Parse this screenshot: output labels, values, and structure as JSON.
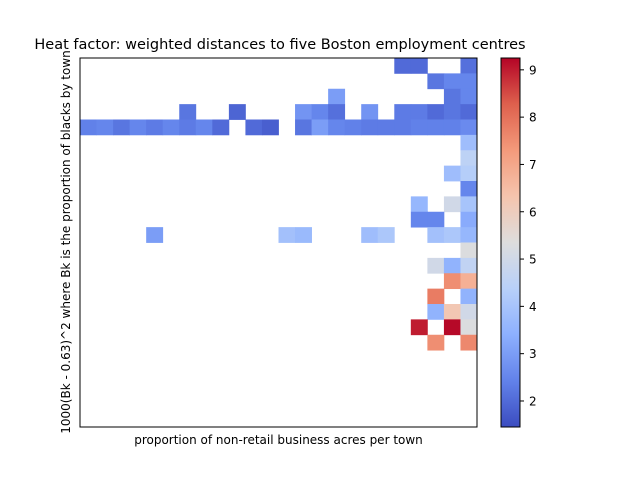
{
  "chart_data": {
    "type": "heatmap",
    "title": "Heat factor: weighted distances to five Boston employment centres",
    "xlabel": "proportion of non-retail business acres per town",
    "ylabel": "1000(Bk - 0.63)^2 where Bk is the proportion of blacks by town",
    "colormap": "coolwarm",
    "value_range": [
      1.45,
      9.25
    ],
    "colorbar_ticks": [
      2,
      3,
      4,
      5,
      6,
      7,
      8,
      9
    ],
    "n_cols": 24,
    "n_rows": 24,
    "grid": false,
    "cells": [
      [
        19,
        0,
        2.0
      ],
      [
        20,
        0,
        2.0
      ],
      [
        23,
        0,
        2.1
      ],
      [
        21,
        1,
        2.2
      ],
      [
        22,
        1,
        2.5
      ],
      [
        23,
        1,
        2.5
      ],
      [
        15,
        2,
        3.0
      ],
      [
        22,
        2,
        2.2
      ],
      [
        23,
        2,
        2.5
      ],
      [
        6,
        3,
        2.2
      ],
      [
        9,
        3,
        1.9
      ],
      [
        13,
        3,
        2.8
      ],
      [
        14,
        3,
        2.5
      ],
      [
        15,
        3,
        2.1
      ],
      [
        17,
        3,
        2.8
      ],
      [
        19,
        3,
        2.3
      ],
      [
        20,
        3,
        2.3
      ],
      [
        21,
        3,
        2.0
      ],
      [
        22,
        3,
        2.2
      ],
      [
        23,
        3,
        2.0
      ],
      [
        0,
        4,
        2.4
      ],
      [
        1,
        4,
        2.5
      ],
      [
        2,
        4,
        2.2
      ],
      [
        3,
        4,
        2.5
      ],
      [
        4,
        4,
        2.3
      ],
      [
        5,
        4,
        2.5
      ],
      [
        6,
        4,
        2.3
      ],
      [
        7,
        4,
        2.5
      ],
      [
        8,
        4,
        2.0
      ],
      [
        10,
        4,
        2.0
      ],
      [
        11,
        4,
        1.8
      ],
      [
        13,
        4,
        2.2
      ],
      [
        14,
        4,
        3.0
      ],
      [
        15,
        4,
        2.5
      ],
      [
        16,
        4,
        2.4
      ],
      [
        17,
        4,
        2.3
      ],
      [
        18,
        4,
        2.3
      ],
      [
        19,
        4,
        2.3
      ],
      [
        20,
        4,
        2.4
      ],
      [
        21,
        4,
        2.4
      ],
      [
        22,
        4,
        2.4
      ],
      [
        23,
        4,
        2.6
      ],
      [
        23,
        5,
        3.8
      ],
      [
        23,
        6,
        4.5
      ],
      [
        22,
        7,
        3.8
      ],
      [
        23,
        7,
        4.3
      ],
      [
        23,
        8,
        2.5
      ],
      [
        20,
        9,
        3.6
      ],
      [
        22,
        9,
        5.0
      ],
      [
        23,
        9,
        4.0
      ],
      [
        20,
        10,
        2.5
      ],
      [
        21,
        10,
        2.5
      ],
      [
        23,
        10,
        3.3
      ],
      [
        4,
        11,
        3.0
      ],
      [
        12,
        11,
        3.9
      ],
      [
        13,
        11,
        3.7
      ],
      [
        17,
        11,
        3.8
      ],
      [
        18,
        11,
        4.1
      ],
      [
        21,
        11,
        3.9
      ],
      [
        22,
        11,
        4.1
      ],
      [
        23,
        11,
        3.6
      ],
      [
        23,
        12,
        5.3
      ],
      [
        21,
        13,
        5.0
      ],
      [
        22,
        13,
        3.5
      ],
      [
        23,
        13,
        4.6
      ],
      [
        22,
        14,
        7.5
      ],
      [
        23,
        14,
        6.8
      ],
      [
        21,
        15,
        7.8
      ],
      [
        23,
        15,
        3.5
      ],
      [
        21,
        16,
        3.5
      ],
      [
        22,
        16,
        6.2
      ],
      [
        23,
        16,
        5.0
      ],
      [
        20,
        17,
        9.0
      ],
      [
        22,
        17,
        9.2
      ],
      [
        23,
        17,
        5.3
      ],
      [
        21,
        18,
        7.5
      ],
      [
        23,
        18,
        7.6
      ]
    ]
  }
}
